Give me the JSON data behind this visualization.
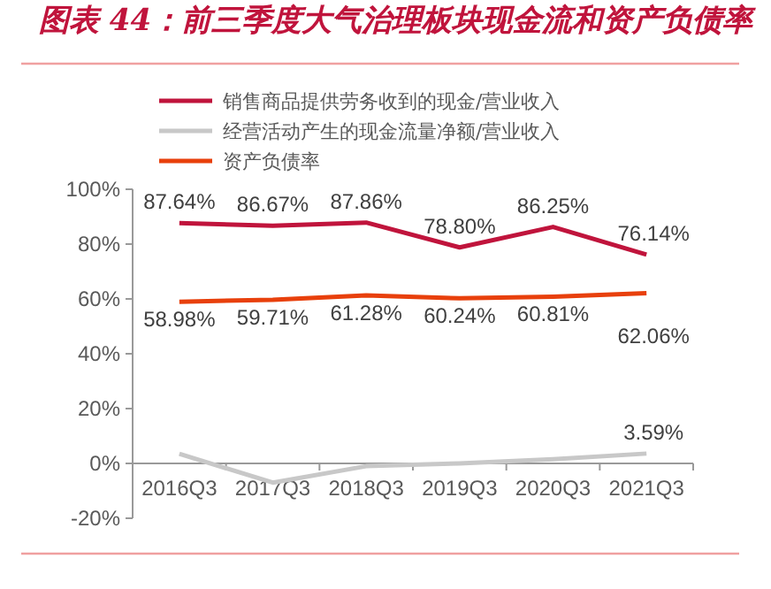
{
  "chart_data": {
    "type": "line",
    "title": "图表 44：前三季度大气治理板块现金流和资产负债率",
    "categories": [
      "2016Q3",
      "2017Q3",
      "2018Q3",
      "2019Q3",
      "2020Q3",
      "2021Q3"
    ],
    "series": [
      {
        "name": "销售商品提供劳务收到的现金/营业收入",
        "color": "#c0143c",
        "values": [
          87.64,
          86.67,
          87.86,
          78.8,
          86.25,
          76.14
        ],
        "value_labels": [
          "87.64%",
          "86.67%",
          "87.86%",
          "78.80%",
          "86.25%",
          "76.14%"
        ]
      },
      {
        "name": "经营活动产生的现金流量净额/营业收入",
        "color": "#c8c8c8",
        "values": [
          3.5,
          -7,
          -1,
          0,
          1.5,
          3.59
        ],
        "value_labels": [
          null,
          null,
          null,
          null,
          null,
          "3.59%"
        ]
      },
      {
        "name": "资产负债率",
        "color": "#e8400c",
        "values": [
          58.98,
          59.71,
          61.28,
          60.24,
          60.81,
          62.06
        ],
        "value_labels": [
          "58.98%",
          "59.71%",
          "61.28%",
          "60.24%",
          "60.81%",
          "62.06%"
        ]
      }
    ],
    "ylim": [
      -20,
      100
    ],
    "yticks": [
      {
        "value": -20,
        "label": "-20%"
      },
      {
        "value": 0,
        "label": "0%"
      },
      {
        "value": 20,
        "label": "20%"
      },
      {
        "value": 40,
        "label": "40%"
      },
      {
        "value": 60,
        "label": "60%"
      },
      {
        "value": 80,
        "label": "80%"
      },
      {
        "value": 100,
        "label": "100%"
      }
    ],
    "legend": "top",
    "grid": false
  }
}
